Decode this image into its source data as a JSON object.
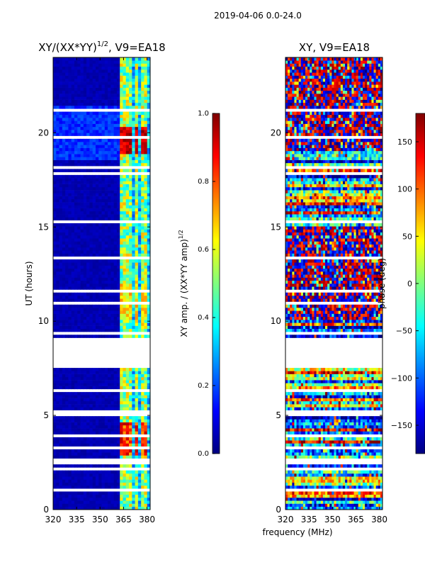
{
  "suptitle": "2019-04-06 0.0-24.0",
  "colors": {
    "jet": [
      "#00007f",
      "#0000ff",
      "#007fff",
      "#00ffff",
      "#7fff7f",
      "#ffff00",
      "#ff7f00",
      "#ff0000",
      "#7f0000"
    ],
    "background": "#ffffff",
    "gap": "#ffffff"
  },
  "chart_data": [
    {
      "type": "heatmap",
      "title_base": "XY/(XX*YY)",
      "title_exp": "1/2",
      "title_suffix": ", V9=EA18",
      "xlabel": "",
      "ylabel": "UT (hours)",
      "xlim": [
        320,
        382
      ],
      "ylim": [
        0,
        24
      ],
      "xticks": [
        320,
        335,
        350,
        365,
        380
      ],
      "yticks": [
        0,
        5,
        10,
        15,
        20
      ],
      "colorbar": {
        "label_base": "XY amp. / (XX*YY amp)",
        "label_exp": "1/2",
        "range": [
          0.0,
          1.0
        ],
        "ticks": [
          "0.0",
          "0.2",
          "0.4",
          "0.6",
          "0.8",
          "1.0"
        ],
        "tick_values": [
          0.0,
          0.2,
          0.4,
          0.6,
          0.8,
          1.0
        ]
      },
      "rfi_channels_mhz": [
        364,
        369,
        373,
        378
      ],
      "data_gap_hours": [
        7.7,
        9.1
      ],
      "notes": "Mostly low amplitude (~0.05); high-amplitude RFI near 20 h and 3-4 h at 364-380 MHz"
    },
    {
      "type": "heatmap",
      "title": "XY, V9=EA18",
      "xlabel": "frequency (MHz)",
      "ylabel": "",
      "xlim": [
        320,
        382
      ],
      "ylim": [
        0,
        24
      ],
      "xticks": [
        320,
        335,
        350,
        365,
        380
      ],
      "yticks": [
        0,
        5,
        10,
        15,
        20
      ],
      "colorbar": {
        "label": "phase (deg)",
        "range": [
          -180,
          180
        ],
        "ticks": [
          "150",
          "100",
          "50",
          "0",
          "−50",
          "−100",
          "−150"
        ],
        "tick_values": [
          150,
          100,
          50,
          0,
          -50,
          -100,
          -150
        ]
      },
      "data_gap_hours": [
        7.7,
        9.1
      ],
      "notes": "Phase noisy across full range; strong red/blue banding 10-15 h and 19-24 h"
    }
  ]
}
